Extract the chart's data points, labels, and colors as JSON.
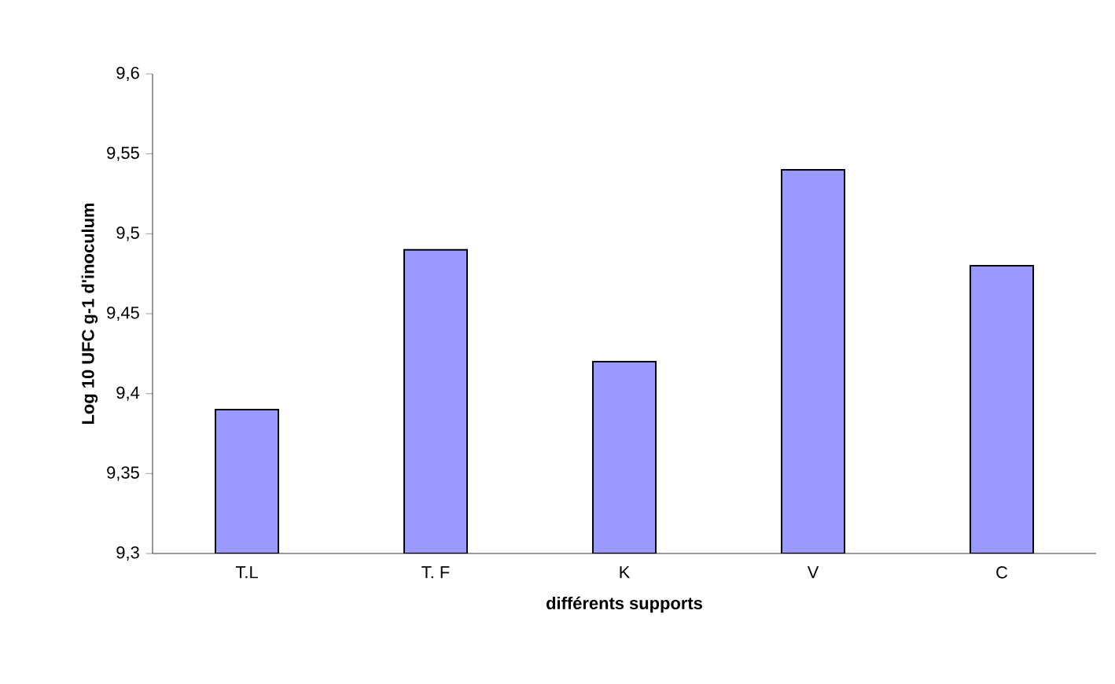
{
  "chart_data": {
    "type": "bar",
    "xlabel": "différents supports",
    "ylabel": "Log 10 UFC g-1 d'inoculum",
    "categories": [
      "T.L",
      "T. F",
      "K",
      "V",
      "C"
    ],
    "values": [
      9.39,
      9.49,
      9.42,
      9.54,
      9.48
    ],
    "color": "#9999ff",
    "ylim": [
      9.3,
      9.6
    ],
    "yticks": [
      {
        "value": 9.3,
        "label": "9,3"
      },
      {
        "value": 9.35,
        "label": "9,35"
      },
      {
        "value": 9.4,
        "label": "9,4"
      },
      {
        "value": 9.45,
        "label": "9,45"
      },
      {
        "value": 9.5,
        "label": "9,5"
      },
      {
        "value": 9.55,
        "label": "9,55"
      },
      {
        "value": 9.6,
        "label": "9,6"
      }
    ],
    "grid": false
  }
}
